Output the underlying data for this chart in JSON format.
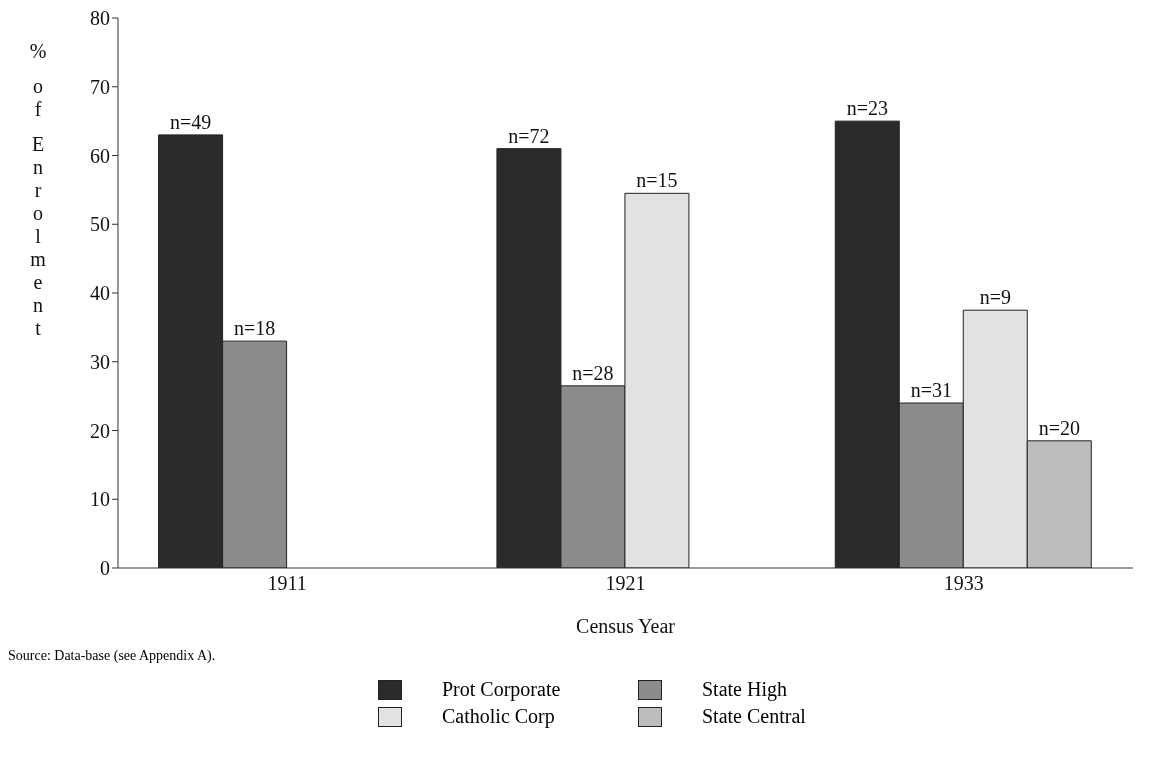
{
  "chart_data": {
    "type": "bar",
    "xlabel": "Census Year",
    "ylabel": "% of Enrolment",
    "categories": [
      "1911",
      "1921",
      "1933"
    ],
    "series": [
      {
        "name": "Prot Corporate",
        "color": "#2b2b2b",
        "values": [
          63,
          61,
          65
        ]
      },
      {
        "name": "State High",
        "color": "#8c8c8c",
        "values": [
          33,
          26.5,
          24
        ]
      },
      {
        "name": "Catholic Corp",
        "color": "#e2e2e2",
        "values": [
          null,
          54.5,
          37.5
        ]
      },
      {
        "name": "State Central",
        "color": "#bdbdbd",
        "values": [
          null,
          null,
          18.5
        ]
      }
    ],
    "ylim": [
      0,
      80
    ],
    "yticks": [
      0,
      10,
      20,
      30,
      40,
      50,
      60,
      70,
      80
    ],
    "grid": false,
    "legend": "bottom",
    "annotations": [
      "Source: Data-base (see Appendix A).",
      "n=49",
      "n=72",
      "n=23",
      "n=18",
      "n=28",
      "n=31",
      "n=15",
      "n=9",
      "n=20"
    ]
  }
}
